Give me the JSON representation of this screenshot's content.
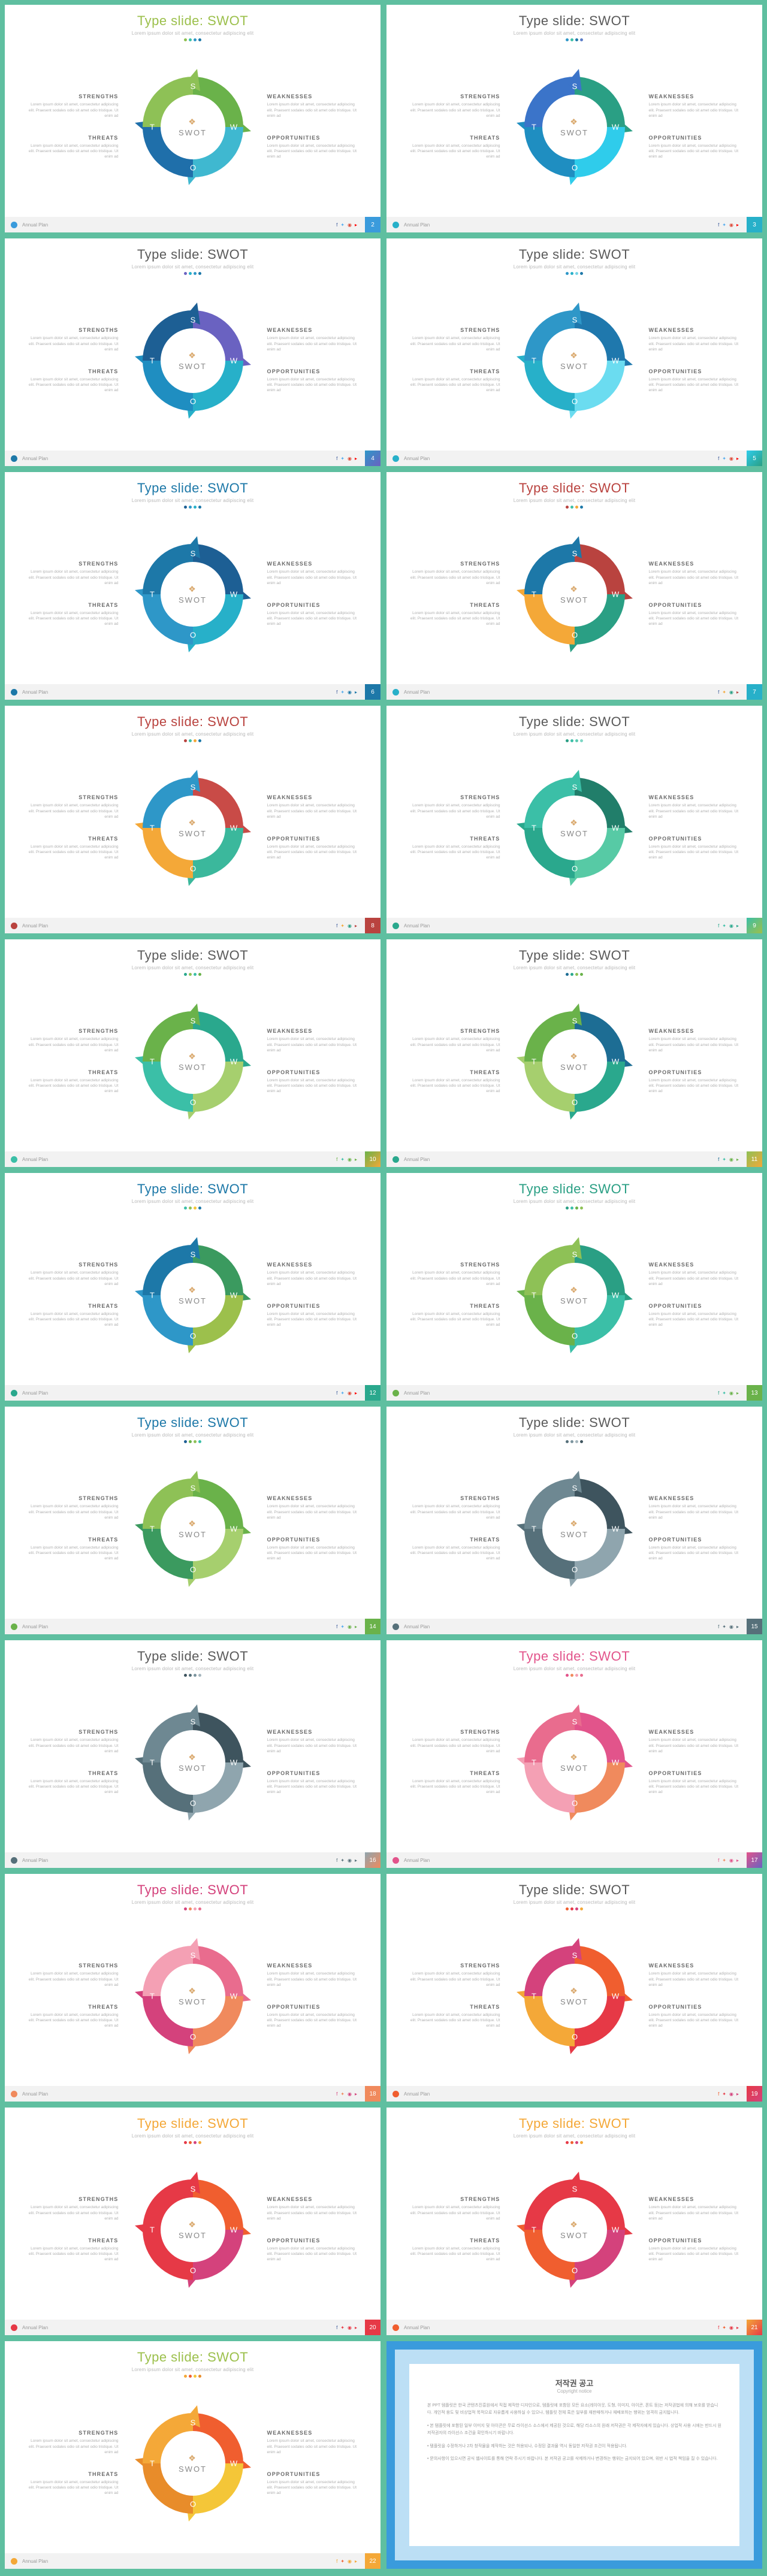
{
  "common": {
    "title": "Type slide: SWOT",
    "subtitle": "Lorem ipsum dolor sit amet, consectetur adipiscing elit",
    "center_text": "SWOT",
    "footer_name": "Annual Plan",
    "box_body": "Lorem ipsum dolor sit amet, consectetur adipiscing elit. Praesent sodales odio sit amet odio tristique. Ut enim ad",
    "quadrants": {
      "strengths": "STRENGTHS",
      "weaknesses": "WEAKNESSES",
      "threats": "THREATS",
      "opportunities": "OPPORTUNITIES"
    },
    "seg_letters": {
      "s": "S",
      "w": "W",
      "o": "O",
      "t": "T"
    },
    "social_glyphs": [
      "f",
      "✦",
      "◉",
      "▸"
    ]
  },
  "slides": [
    {
      "page": 2,
      "title_color": "#9cc04c",
      "dots": [
        "#8fbf4f",
        "#3bbfa7",
        "#2e97c8",
        "#1d78a8"
      ],
      "seg": {
        "s": "#6ab24a",
        "w": "#3fb8d0",
        "o": "#1f6faa",
        "t": "#8ec156"
      },
      "footer_dot": "#3a9bdc",
      "page_bg": "#3a9bdc",
      "social_colors": [
        "#3b5998",
        "#55acee",
        "#dd4b39",
        "#ff0000"
      ]
    },
    {
      "page": 3,
      "title_color": "#5a5a5a",
      "dots": [
        "#2e97c8",
        "#3bbfa7",
        "#1d78a8",
        "#5a7dc8"
      ],
      "seg": {
        "s": "#2a9f84",
        "w": "#2fcceb",
        "o": "#1f8ec1",
        "t": "#3b74c9"
      },
      "footer_dot": "#27b0c9",
      "page_bg": "#27b0c9",
      "social_colors": [
        "#3b5998",
        "#55acee",
        "#dd4b39",
        "#ff0000"
      ]
    },
    {
      "page": 4,
      "title_color": "#5a5a5a",
      "dots": [
        "#6a62c1",
        "#27b0c9",
        "#2e97c8",
        "#1d78a8"
      ],
      "seg": {
        "s": "#6a62c1",
        "w": "#27b0c9",
        "o": "#1f8ec1",
        "t": "#1d5f94"
      },
      "footer_dot": "#1d78a8",
      "page_bg": "linear-gradient(135deg,#2e97c8,#6a62c1)",
      "social_colors": [
        "#3b5998",
        "#55acee",
        "#dd4b39",
        "#ff0000"
      ]
    },
    {
      "page": 5,
      "title_color": "#5a5a5a",
      "dots": [
        "#2e97c8",
        "#27b0c9",
        "#77d3e6",
        "#1d78a8"
      ],
      "seg": {
        "s": "#1f78ad",
        "w": "#6bdcf0",
        "o": "#27b0c9",
        "t": "#2e97c8"
      },
      "footer_dot": "#27b0c9",
      "page_bg": "linear-gradient(135deg,#2fcceb,#2a9f84)",
      "social_colors": [
        "#3b5998",
        "#55acee",
        "#dd4b39",
        "#ff0000"
      ]
    },
    {
      "page": 6,
      "title_color": "#1d78a8",
      "dots": [
        "#1d5f94",
        "#2e97c8",
        "#27b0c9",
        "#1d78a8"
      ],
      "seg": {
        "s": "#1d5f94",
        "w": "#27b0c9",
        "o": "#2e97c8",
        "t": "#1d78a8"
      },
      "footer_dot": "#1d78a8",
      "page_bg": "#1d78a8",
      "social_colors": [
        "#3b5998",
        "#55acee",
        "#1d78a8",
        "#1d78a8"
      ]
    },
    {
      "page": 7,
      "title_color": "#b9433f",
      "dots": [
        "#b9433f",
        "#3bbfa7",
        "#f4a838",
        "#1d78a8"
      ],
      "seg": {
        "s": "#b9433f",
        "w": "#2a9f84",
        "o": "#f4a838",
        "t": "#1d78a8"
      },
      "footer_dot": "#27b0c9",
      "page_bg": "#27b0c9",
      "social_colors": [
        "#3b5998",
        "#f4a838",
        "#2a9f84",
        "#b9433f"
      ]
    },
    {
      "page": 8,
      "title_color": "#b9433f",
      "dots": [
        "#b9433f",
        "#3bbfa7",
        "#f4a838",
        "#1d78a8"
      ],
      "seg": {
        "s": "#c94b47",
        "w": "#3bb89c",
        "o": "#f4a838",
        "t": "#2e97c8"
      },
      "footer_dot": "#b9433f",
      "page_bg": "#b9433f",
      "social_colors": [
        "#3b5998",
        "#f4a838",
        "#2a9f84",
        "#b9433f"
      ]
    },
    {
      "page": 9,
      "title_color": "#5a5a5a",
      "dots": [
        "#2a9f84",
        "#3bbfa7",
        "#5cc9b1",
        "#7dd6c4"
      ],
      "seg": {
        "s": "#217e6a",
        "w": "#57caa5",
        "o": "#2aa88d",
        "t": "#3bbfa7"
      },
      "footer_dot": "#2aa88d",
      "page_bg": "linear-gradient(135deg,#3bbfa7,#9cc04c)",
      "social_colors": [
        "#2aa88d",
        "#3bbfa7",
        "#2aa88d",
        "#2aa88d"
      ]
    },
    {
      "page": 10,
      "title_color": "#5a5a5a",
      "dots": [
        "#2aa88d",
        "#8ec156",
        "#3bbfa7",
        "#6ab24a"
      ],
      "seg": {
        "s": "#2aa88d",
        "w": "#a6cf6e",
        "o": "#3bbfa7",
        "t": "#6ab24a"
      },
      "footer_dot": "#3bbfa7",
      "page_bg": "linear-gradient(135deg,#6ab24a,#f4a838)",
      "social_colors": [
        "#6ab24a",
        "#3bbfa7",
        "#6ab24a",
        "#6ab24a"
      ]
    },
    {
      "page": 11,
      "title_color": "#5a5a5a",
      "dots": [
        "#1d6d94",
        "#2aa88d",
        "#8ec156",
        "#6ab24a"
      ],
      "seg": {
        "s": "#1d6d94",
        "w": "#2aa88d",
        "o": "#a6cf6e",
        "t": "#6ab24a"
      },
      "footer_dot": "#2aa88d",
      "page_bg": "linear-gradient(135deg,#8ec156,#f4a838)",
      "social_colors": [
        "#1d6d94",
        "#3bbfa7",
        "#6ab24a",
        "#6ab24a"
      ]
    },
    {
      "page": 12,
      "title_color": "#1d78a8",
      "dots": [
        "#3bbfa7",
        "#8ec156",
        "#f4c638",
        "#1d78a8"
      ],
      "seg": {
        "s": "#3b9a5f",
        "w": "#9cc04c",
        "o": "#2e97c8",
        "t": "#1d78a8"
      },
      "footer_dot": "#2aa88d",
      "page_bg": "#2aa88d",
      "social_colors": [
        "#3b5998",
        "#55acee",
        "#dd4b39",
        "#ff0000"
      ]
    },
    {
      "page": 13,
      "title_color": "#2a9f84",
      "dots": [
        "#2a9f84",
        "#3bbfa7",
        "#6ab24a",
        "#8ec156"
      ],
      "seg": {
        "s": "#2a9f84",
        "w": "#3bbfa7",
        "o": "#6ab24a",
        "t": "#8ec156"
      },
      "footer_dot": "#6ab24a",
      "page_bg": "#6ab24a",
      "social_colors": [
        "#2a9f84",
        "#3bbfa7",
        "#6ab24a",
        "#6ab24a"
      ]
    },
    {
      "page": 14,
      "title_color": "#1d78a8",
      "dots": [
        "#1d5f94",
        "#6ab24a",
        "#8ec156",
        "#3bbfa7"
      ],
      "seg": {
        "s": "#6ab24a",
        "w": "#a6cf6e",
        "o": "#3b9a5f",
        "t": "#8ec156"
      },
      "footer_dot": "#6ab24a",
      "page_bg": "#6ab24a",
      "social_colors": [
        "#3b5998",
        "#55acee",
        "#6ab24a",
        "#6ab24a"
      ]
    },
    {
      "page": 15,
      "title_color": "#5a5a5a",
      "dots": [
        "#56707a",
        "#7b949e",
        "#a5b6bd",
        "#3e545e"
      ],
      "seg": {
        "s": "#3e545e",
        "w": "#8fa5ae",
        "o": "#56707a",
        "t": "#6e8892"
      },
      "footer_dot": "#56707a",
      "page_bg": "#56707a",
      "social_colors": [
        "#56707a",
        "#56707a",
        "#56707a",
        "#56707a"
      ]
    },
    {
      "page": 16,
      "title_color": "#5a5a5a",
      "dots": [
        "#3e545e",
        "#56707a",
        "#7b949e",
        "#a5b6bd"
      ],
      "seg": {
        "s": "#3e545e",
        "w": "#8fa5ae",
        "o": "#56707a",
        "t": "#6e8892"
      },
      "footer_dot": "#56707a",
      "page_bg": "linear-gradient(135deg,#8fa5ae,#f08a5d)",
      "social_colors": [
        "#56707a",
        "#56707a",
        "#56707a",
        "#56707a"
      ]
    },
    {
      "page": 17,
      "title_color": "#e2548b",
      "dots": [
        "#e2548b",
        "#f08a5d",
        "#f4a0b4",
        "#e96c8e"
      ],
      "seg": {
        "s": "#e2548b",
        "w": "#f08a5d",
        "o": "#f4a0b4",
        "t": "#e96c8e"
      },
      "footer_dot": "#e2548b",
      "page_bg": "linear-gradient(135deg,#e2548b,#6a62c1)",
      "social_colors": [
        "#e2548b",
        "#f08a5d",
        "#e2548b",
        "#e2548b"
      ]
    },
    {
      "page": 18,
      "title_color": "#d4427c",
      "dots": [
        "#d4427c",
        "#f08a5d",
        "#f4a0b4",
        "#e96c8e"
      ],
      "seg": {
        "s": "#e96c8e",
        "w": "#f08a5d",
        "o": "#d4427c",
        "t": "#f4a0b4"
      },
      "footer_dot": "#f08a5d",
      "page_bg": "#f08a5d",
      "social_colors": [
        "#d4427c",
        "#f08a5d",
        "#d4427c",
        "#d4427c"
      ]
    },
    {
      "page": 19,
      "title_color": "#5a5a5a",
      "dots": [
        "#f05e2f",
        "#e63946",
        "#d4427c",
        "#f4a838"
      ],
      "seg": {
        "s": "#f05e2f",
        "w": "#e63946",
        "o": "#f4a838",
        "t": "#d4427c"
      },
      "footer_dot": "#f05e2f",
      "page_bg": "linear-gradient(135deg,#e63946,#d4427c)",
      "social_colors": [
        "#f05e2f",
        "#e63946",
        "#d4427c",
        "#d4427c"
      ]
    },
    {
      "page": 20,
      "title_color": "#f4a838",
      "dots": [
        "#e63946",
        "#f05e2f",
        "#d4427c",
        "#f4a838"
      ],
      "seg": {
        "s": "#f05e2f",
        "w": "#d4427c",
        "o": "#e63946",
        "t": "#e63946"
      },
      "footer_dot": "#e63946",
      "page_bg": "#e63946",
      "social_colors": [
        "#3b5998",
        "#e63946",
        "#e63946",
        "#e63946"
      ]
    },
    {
      "page": 21,
      "title_color": "#f4a838",
      "dots": [
        "#e63946",
        "#f05e2f",
        "#d4427c",
        "#f4a838"
      ],
      "seg": {
        "s": "#e63946",
        "w": "#d4427c",
        "o": "#f05e2f",
        "t": "#e63946"
      },
      "footer_dot": "#f05e2f",
      "page_bg": "linear-gradient(135deg,#f4a838,#e63946)",
      "social_colors": [
        "#e63946",
        "#f05e2f",
        "#e63946",
        "#e63946"
      ]
    },
    {
      "page": 22,
      "title_color": "#9cc04c",
      "dots": [
        "#f4a838",
        "#f05e2f",
        "#f4c638",
        "#e88c2a"
      ],
      "seg": {
        "s": "#f05e2f",
        "w": "#f4c638",
        "o": "#e88c2a",
        "t": "#f4a838"
      },
      "footer_dot": "#f4a838",
      "page_bg": "#f4a838",
      "social_colors": [
        "#f4a838",
        "#f05e2f",
        "#f4a838",
        "#f4a838"
      ]
    }
  ],
  "copyright": {
    "title": "저작권 공고",
    "subtitle": "Copyright notice",
    "p1": "본 PPT 템플릿은 한국 콘텐츠진흥원에서 직접 제작한 디자인으로, 템플릿에 포함된 모든 요소(레이아웃, 도형, 이미지, 아이콘, 폰트 등)는 저작권법에 의해 보호를 받습니다. 개인적 용도 및 비상업적 목적으로 자유롭게 사용하실 수 있으나, 템플릿 전체 혹은 일부를 재판매하거나 재배포하는 행위는 엄격히 금지됩니다.",
    "p2": "• 본 템플릿에 포함된 일부 이미지 및 아이콘은 무료 라이선스 소스에서 제공된 것으로, 해당 리소스의 원래 저작권은 각 제작자에게 있습니다. 상업적 사용 시에는 반드시 원 저작권자의 라이선스 조건을 확인하시기 바랍니다.",
    "p3": "• 템플릿을 수정하거나 2차 창작물을 제작하는 것은 허용되나, 수정된 결과물 역시 동일한 저작권 조건이 적용됩니다.",
    "p4": "• 문의사항이 있으시면 공식 웹사이트를 통해 연락 주시기 바랍니다. 본 저작권 공고를 삭제하거나 변경하는 행위는 금지되어 있으며, 위반 시 법적 책임을 질 수 있습니다."
  }
}
